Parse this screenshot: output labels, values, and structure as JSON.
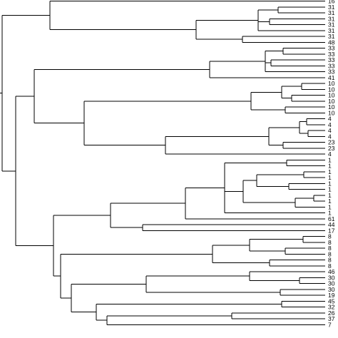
{
  "dendrogram": {
    "leaf_labels": [
      "16",
      "31",
      "31",
      "31",
      "31",
      "31",
      "31",
      "48",
      "33",
      "33",
      "33",
      "33",
      "33",
      "41",
      "10",
      "10",
      "10",
      "10",
      "10",
      "10",
      "4",
      "4",
      "4",
      "4",
      "23",
      "23",
      "4",
      "1",
      "1",
      "1",
      "1",
      "1",
      "1",
      "1",
      "1",
      "1",
      "1",
      "61",
      "44",
      "17",
      "8",
      "8",
      "8",
      "8",
      "8",
      "8",
      "46",
      "30",
      "30",
      "30",
      "19",
      "45",
      "32",
      "26",
      "37",
      "7"
    ],
    "line_color": "#000000",
    "background_color": "#ffffff"
  }
}
